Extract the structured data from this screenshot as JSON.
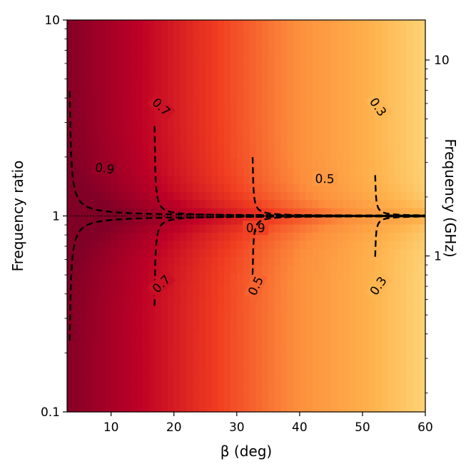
{
  "chart_data": {
    "type": "heatmap",
    "title": "",
    "xlabel": "β (deg)",
    "ylabel": "Frequency ratio",
    "ylabel_right": "Frequency (GHz)",
    "xlim": [
      3,
      60
    ],
    "ylim": [
      0.1,
      10
    ],
    "yscale": "log",
    "xticks": [
      10,
      20,
      30,
      40,
      50,
      60
    ],
    "xtick_labels": [
      "10",
      "20",
      "30",
      "40",
      "50",
      "60"
    ],
    "yticks": [
      0.1,
      1,
      10
    ],
    "ytick_labels": [
      "0.1",
      "1",
      "10"
    ],
    "right_axis": {
      "scale": "log",
      "ticks": [
        1,
        10
      ],
      "tick_labels": [
        "1",
        "10"
      ],
      "range_ghz": [
        0.16,
        16
      ]
    },
    "colormap": "YlOrRd",
    "colormap_stops": [
      "#ffffd0",
      "#fee187",
      "#feb24c",
      "#fd8d3c",
      "#f03b20",
      "#bd0026",
      "#800026"
    ],
    "reference_line": {
      "y": 1,
      "style": "dotted"
    },
    "contour_levels": [
      0.9,
      0.7,
      0.5,
      0.3
    ],
    "contours": [
      {
        "level": 0.9,
        "asymptote_deg": 3.2,
        "label": "0.9",
        "label_upper_at": [
          9,
          1.75
        ],
        "label_lower_at": [
          33,
          0.87
        ]
      },
      {
        "level": 0.7,
        "asymptote_deg": 16.8,
        "label": "0.7",
        "label_upper_at": [
          18,
          3.6
        ],
        "label_lower_at": [
          18,
          0.45
        ]
      },
      {
        "level": 0.5,
        "asymptote_deg": 32.4,
        "label": "0.5",
        "label_upper_at": [
          44,
          1.55
        ],
        "label_lower_at": [
          33,
          0.44
        ]
      },
      {
        "level": 0.3,
        "asymptote_deg": 51.9,
        "label": "0.3",
        "label_upper_at": [
          52.5,
          3.6
        ],
        "label_lower_at": [
          52.5,
          0.44
        ]
      }
    ],
    "grid": false,
    "legend": "none"
  }
}
